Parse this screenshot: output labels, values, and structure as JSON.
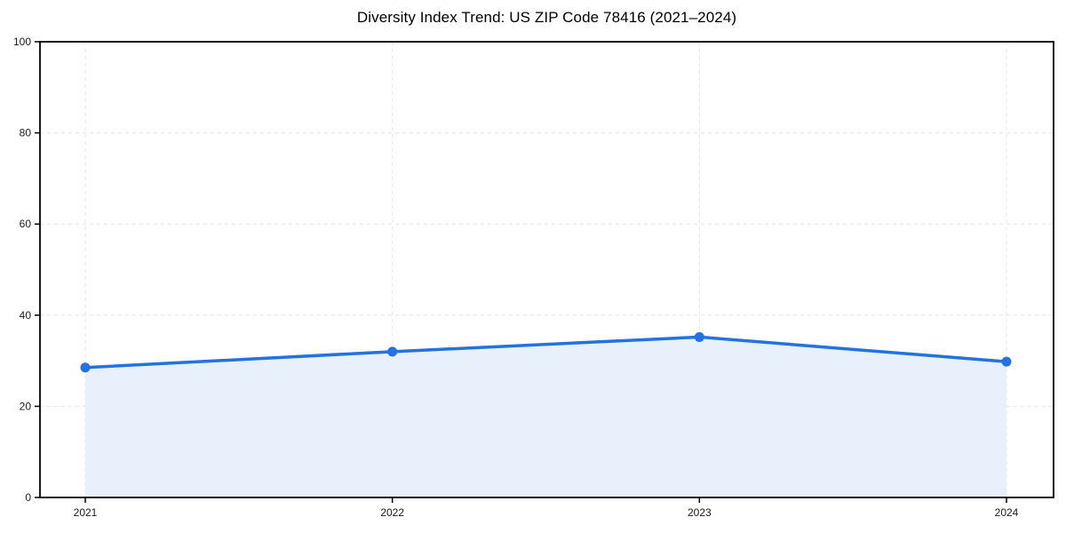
{
  "page": {
    "background": "#ffffff"
  },
  "chart": {
    "title": "Diversity Index Trend: US ZIP Code 78416 (2021–2024)"
  },
  "chart_data": {
    "type": "line",
    "title": "Diversity Index Trend: US ZIP Code 78416 (2021–2024)",
    "categories": [
      "2021",
      "2022",
      "2023",
      "2024"
    ],
    "series": [
      {
        "name": "Diversity Index",
        "values": [
          28.5,
          32.0,
          35.2,
          29.8
        ]
      }
    ],
    "xlabel": "",
    "ylabel": "",
    "ylim": [
      0,
      100
    ],
    "yticks": [
      0,
      20,
      40,
      60,
      80,
      100
    ],
    "grid": true,
    "grid_style": "dashed",
    "legend_position": "none",
    "colors": {
      "line": "#2272e0",
      "marker": "#2272e0",
      "area_fill": "#e8f0fc",
      "grid": "#e4e4e4",
      "spine": "#000000",
      "tick_label": "#1a1a1a"
    },
    "marker": "circle",
    "area_fill": true
  }
}
